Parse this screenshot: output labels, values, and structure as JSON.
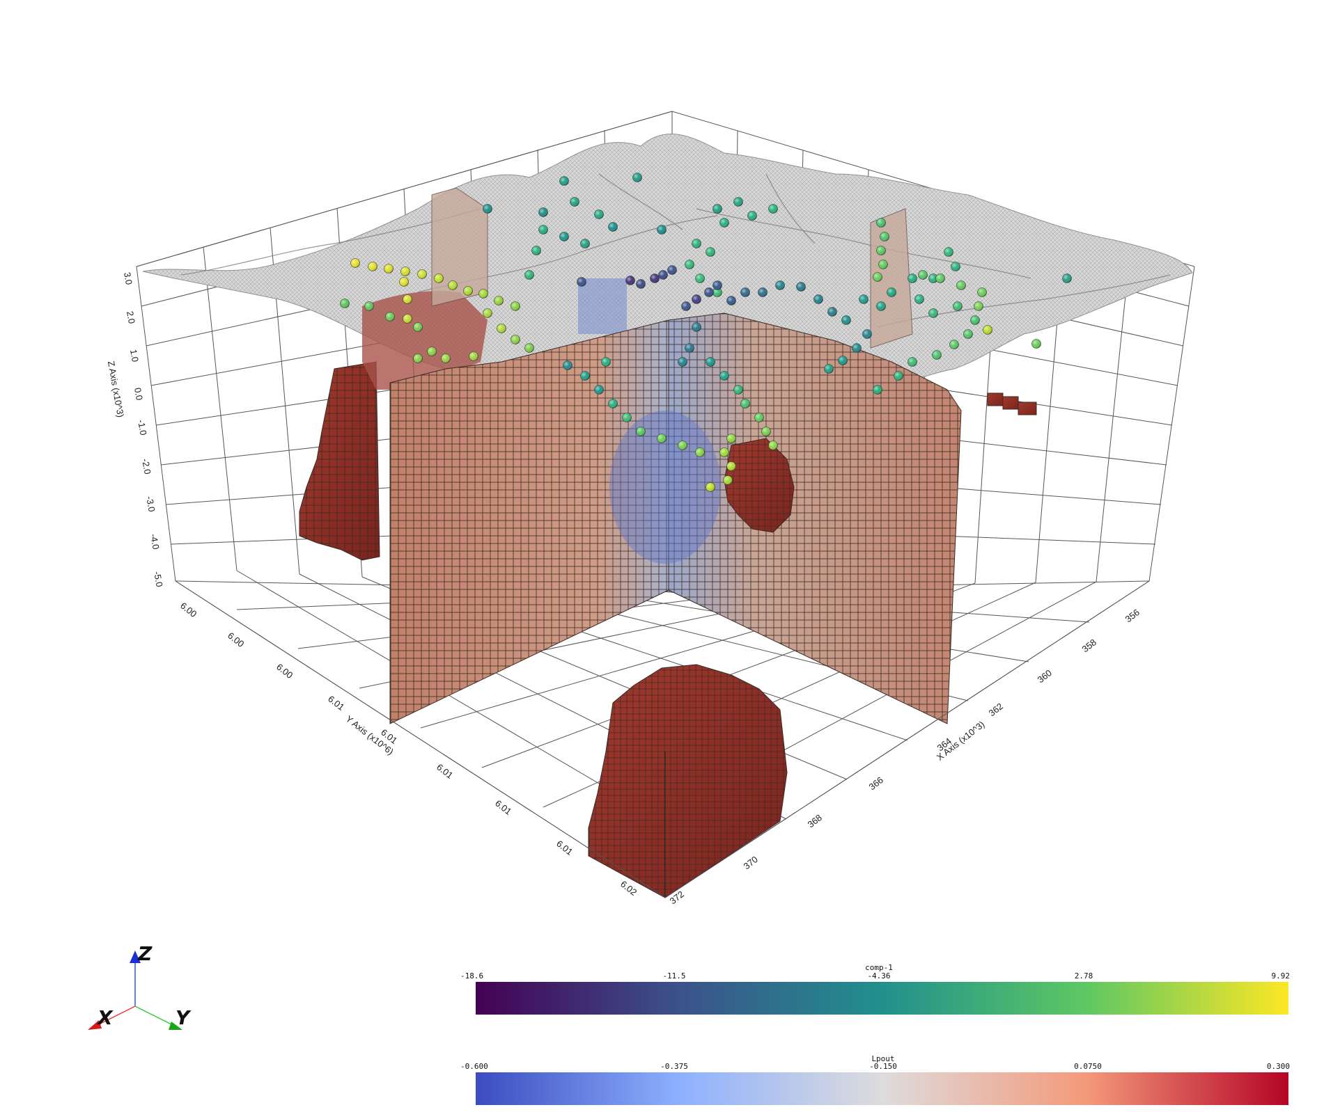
{
  "axes": {
    "x_title": "X Axis (x10^3)",
    "y_title": "Y Axis (x10^6)",
    "z_title": "Z Axis (x10^3)",
    "x_ticks": [
      "356",
      "358",
      "360",
      "362",
      "364",
      "366",
      "368",
      "370",
      "372"
    ],
    "y_ticks": [
      "6.00",
      "6.00",
      "6.00",
      "6.01",
      "6.01",
      "6.01",
      "6.01",
      "6.01",
      "6.02"
    ],
    "z_ticks": [
      "3.0",
      "2.0",
      "1.0",
      "0.0",
      "-1.0",
      "-2.0",
      "-3.0",
      "-4.0",
      "-5.0"
    ]
  },
  "orientation": {
    "x": "X",
    "y": "Y",
    "z": "Z"
  },
  "colorbars": [
    {
      "title": "comp-1",
      "ticks": [
        "-18.6",
        "-11.5",
        "-4.36",
        "2.78",
        "9.92"
      ],
      "colormap": "viridis",
      "stops": [
        "#440154",
        "#3b528b",
        "#21908d",
        "#5dc863",
        "#fde725"
      ]
    },
    {
      "title": "Lpout",
      "ticks": [
        "-0.600",
        "-0.375",
        "-0.150",
        "0.0750",
        "0.300"
      ],
      "colormap": "coolwarm",
      "stops": [
        "#3b4cc0",
        "#8db0fe",
        "#dddcdc",
        "#f49a7b",
        "#b40426"
      ]
    }
  ],
  "colors": {
    "terrain": "#b8b8b8",
    "slice_warm": "#c48a74",
    "slice_cool": "#6a84c8",
    "block": "#8e3128",
    "grid": "#555555"
  }
}
